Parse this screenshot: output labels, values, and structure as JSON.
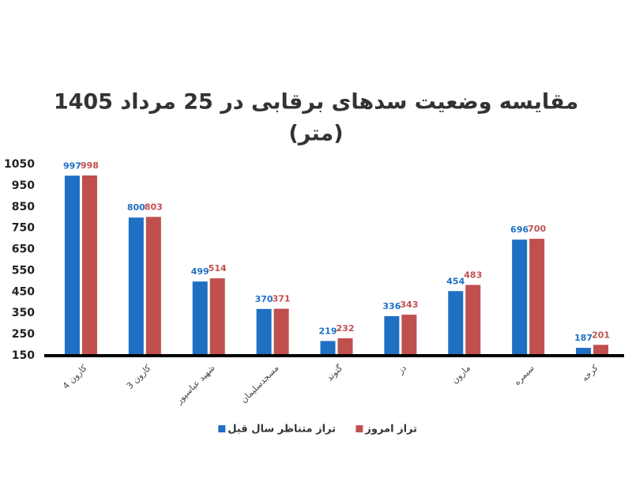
{
  "chart_data": {
    "type": "bar",
    "title": "مقایسه وضعیت سدهای برقابی در 25 مرداد 1405",
    "subtitle": "(متر)",
    "categories": [
      "کارون 4",
      "کارون 3",
      "شهید عباسپور",
      "مسجدسلیمان",
      "گتوند",
      "دز",
      "مارون",
      "سیمره",
      "کرخه"
    ],
    "series": [
      {
        "name": "تراز متناظر سال قبل",
        "color": "#1f6fc5",
        "values": [
          997,
          800,
          499,
          370,
          219,
          336,
          454,
          696,
          187
        ]
      },
      {
        "name": "تراز امروز",
        "color": "#c0504d",
        "values": [
          998,
          803,
          514,
          371,
          232,
          343,
          483,
          700,
          201
        ]
      }
    ],
    "ylim": [
      150,
      1050
    ],
    "yticks": [
      150,
      250,
      350,
      450,
      550,
      650,
      750,
      850,
      950,
      1050
    ],
    "grid": false
  }
}
